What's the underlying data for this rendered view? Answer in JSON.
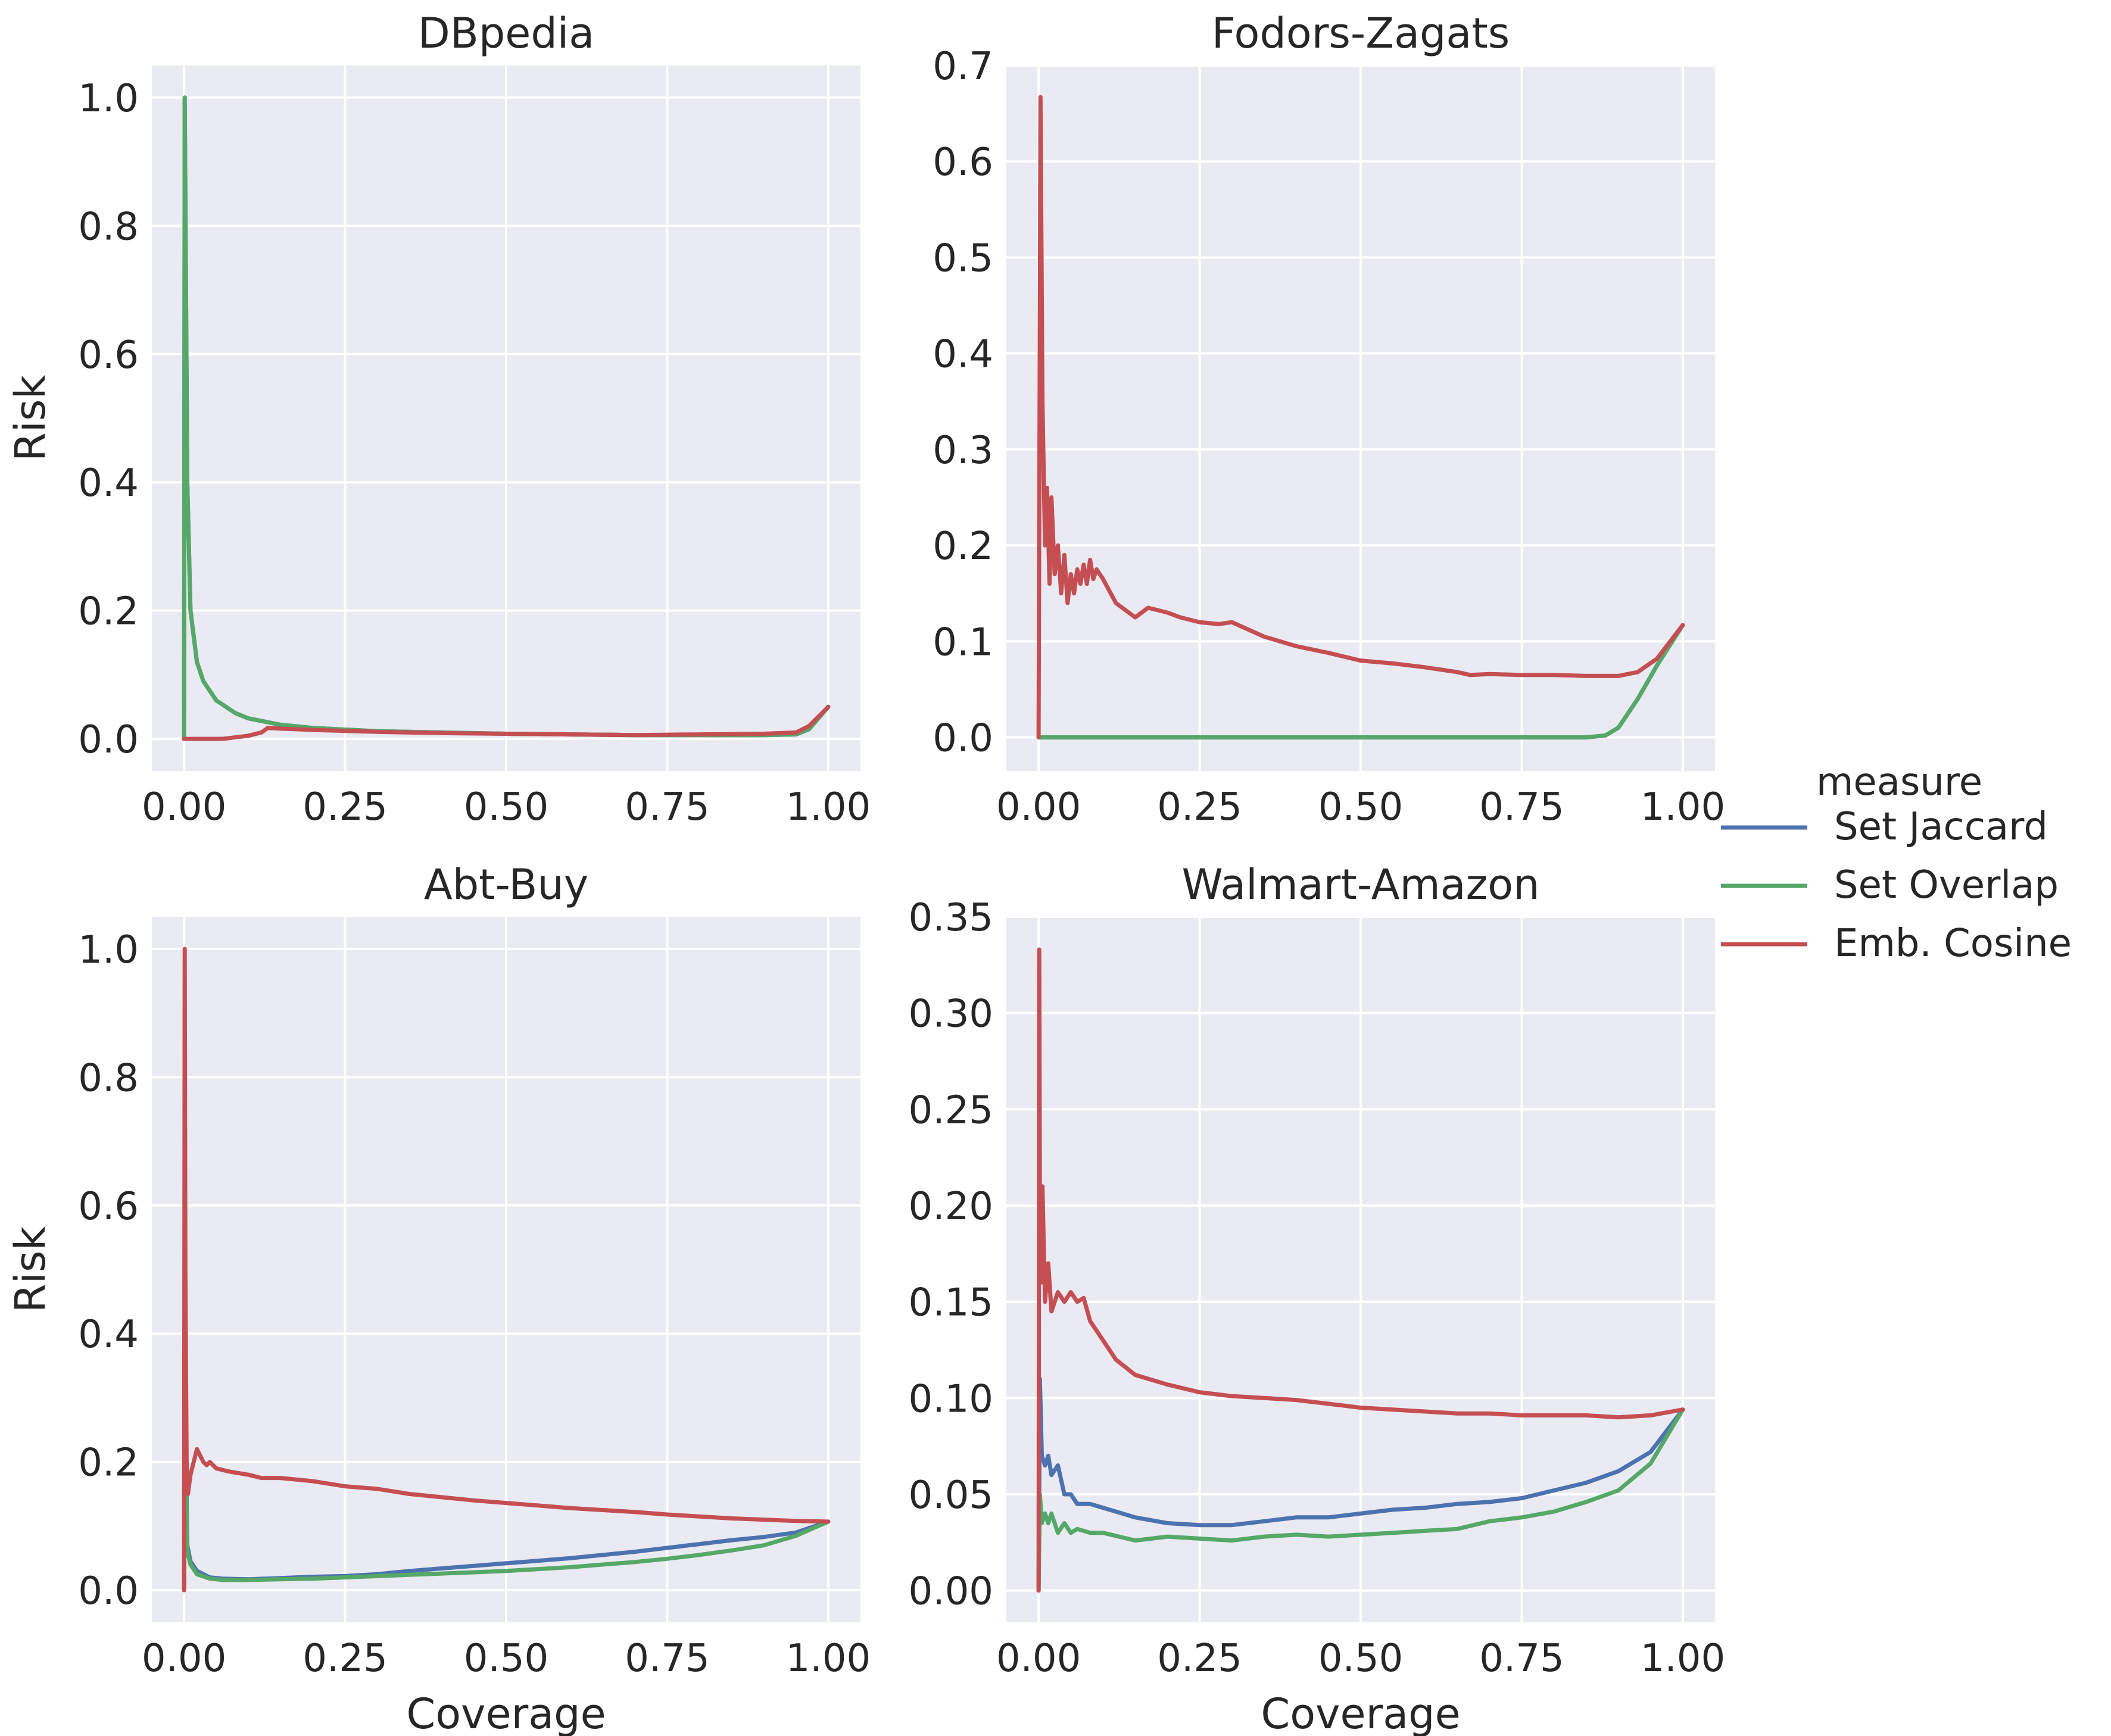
{
  "legend": {
    "title": "measure",
    "placement": "right",
    "entries": [
      {
        "name": "Set Jaccard",
        "color": "#4c72b0"
      },
      {
        "name": "Set Overlap",
        "color": "#55a868"
      },
      {
        "name": "Emb. Cosine",
        "color": "#c44e52"
      }
    ]
  },
  "style": {
    "panel_bg": "#eaeaf2",
    "grid": "#ffffff",
    "text": "#262626"
  },
  "chart_data": [
    {
      "type": "line",
      "title": "DBpedia",
      "xlabel": "",
      "ylabel": "Risk",
      "xlim": [
        -0.05,
        1.05
      ],
      "ylim": [
        -0.05,
        1.05
      ],
      "xticks": [
        0,
        0.25,
        0.5,
        0.75,
        1.0
      ],
      "xtick_labels": [
        "0.00",
        "0.25",
        "0.50",
        "0.75",
        "1.00"
      ],
      "yticks": [
        0,
        0.2,
        0.4,
        0.6,
        0.8,
        1.0
      ],
      "ytick_labels": [
        "0.0",
        "0.2",
        "0.4",
        "0.6",
        "0.8",
        "1.0"
      ],
      "grid": true,
      "series": [
        {
          "name": "Set Jaccard",
          "color": "#4c72b0",
          "x": [
            0,
            0.001,
            0.005,
            0.01,
            0.02,
            0.03,
            0.05,
            0.08,
            0.1,
            0.15,
            0.2,
            0.3,
            0.4,
            0.5,
            0.6,
            0.7,
            0.8,
            0.9,
            0.95,
            0.97,
            1.0
          ],
          "y": [
            0,
            1.0,
            0.4,
            0.2,
            0.12,
            0.09,
            0.06,
            0.04,
            0.032,
            0.022,
            0.017,
            0.012,
            0.01,
            0.008,
            0.007,
            0.006,
            0.006,
            0.006,
            0.007,
            0.015,
            0.05
          ]
        },
        {
          "name": "Set Overlap",
          "color": "#55a868",
          "x": [
            0,
            0.001,
            0.005,
            0.01,
            0.02,
            0.03,
            0.05,
            0.08,
            0.1,
            0.15,
            0.2,
            0.3,
            0.4,
            0.5,
            0.6,
            0.7,
            0.8,
            0.9,
            0.95,
            0.97,
            1.0
          ],
          "y": [
            0,
            1.0,
            0.4,
            0.2,
            0.12,
            0.09,
            0.06,
            0.04,
            0.032,
            0.022,
            0.017,
            0.012,
            0.01,
            0.008,
            0.007,
            0.006,
            0.006,
            0.006,
            0.007,
            0.015,
            0.05
          ]
        },
        {
          "name": "Emb. Cosine",
          "color": "#c44e52",
          "x": [
            0,
            0.03,
            0.06,
            0.1,
            0.12,
            0.13,
            0.15,
            0.2,
            0.3,
            0.4,
            0.5,
            0.6,
            0.7,
            0.8,
            0.9,
            0.95,
            0.97,
            1.0
          ],
          "y": [
            0,
            0,
            0,
            0.005,
            0.01,
            0.017,
            0.016,
            0.014,
            0.011,
            0.009,
            0.008,
            0.007,
            0.006,
            0.007,
            0.008,
            0.01,
            0.02,
            0.05
          ]
        }
      ]
    },
    {
      "type": "line",
      "title": "Fodors-Zagats",
      "xlabel": "",
      "ylabel": "",
      "xlim": [
        -0.05,
        1.05
      ],
      "ylim": [
        -0.035,
        0.7
      ],
      "xticks": [
        0,
        0.25,
        0.5,
        0.75,
        1.0
      ],
      "xtick_labels": [
        "0.00",
        "0.25",
        "0.50",
        "0.75",
        "1.00"
      ],
      "yticks": [
        0,
        0.1,
        0.2,
        0.3,
        0.4,
        0.5,
        0.6,
        0.7
      ],
      "ytick_labels": [
        "0.0",
        "0.1",
        "0.2",
        "0.3",
        "0.4",
        "0.5",
        "0.6",
        "0.7"
      ],
      "grid": true,
      "series": [
        {
          "name": "Set Jaccard",
          "color": "#4c72b0",
          "x": [
            0,
            0.85,
            0.88,
            0.9,
            0.93,
            0.96,
            1.0
          ],
          "y": [
            0,
            0,
            0.002,
            0.01,
            0.04,
            0.075,
            0.117
          ]
        },
        {
          "name": "Set Overlap",
          "color": "#55a868",
          "x": [
            0,
            0.85,
            0.88,
            0.9,
            0.93,
            0.96,
            1.0
          ],
          "y": [
            0,
            0,
            0.002,
            0.01,
            0.04,
            0.075,
            0.117
          ]
        },
        {
          "name": "Emb. Cosine",
          "color": "#c44e52",
          "x": [
            0,
            0.003,
            0.006,
            0.01,
            0.013,
            0.017,
            0.02,
            0.025,
            0.03,
            0.035,
            0.04,
            0.045,
            0.05,
            0.055,
            0.06,
            0.065,
            0.07,
            0.075,
            0.08,
            0.085,
            0.09,
            0.1,
            0.12,
            0.15,
            0.17,
            0.2,
            0.22,
            0.25,
            0.28,
            0.3,
            0.35,
            0.4,
            0.45,
            0.5,
            0.55,
            0.6,
            0.65,
            0.67,
            0.7,
            0.75,
            0.8,
            0.85,
            0.9,
            0.93,
            0.96,
            1.0
          ],
          "y": [
            0,
            0.667,
            0.35,
            0.2,
            0.26,
            0.16,
            0.25,
            0.17,
            0.2,
            0.15,
            0.19,
            0.14,
            0.17,
            0.15,
            0.175,
            0.16,
            0.18,
            0.16,
            0.185,
            0.165,
            0.175,
            0.165,
            0.14,
            0.125,
            0.135,
            0.13,
            0.125,
            0.12,
            0.118,
            0.12,
            0.105,
            0.095,
            0.088,
            0.08,
            0.077,
            0.073,
            0.068,
            0.065,
            0.066,
            0.065,
            0.065,
            0.064,
            0.064,
            0.068,
            0.082,
            0.117
          ]
        }
      ]
    },
    {
      "type": "line",
      "title": "Abt-Buy",
      "xlabel": "Coverage",
      "ylabel": "Risk",
      "xlim": [
        -0.05,
        1.05
      ],
      "ylim": [
        -0.05,
        1.05
      ],
      "xticks": [
        0,
        0.25,
        0.5,
        0.75,
        1.0
      ],
      "xtick_labels": [
        "0.00",
        "0.25",
        "0.50",
        "0.75",
        "1.00"
      ],
      "yticks": [
        0,
        0.2,
        0.4,
        0.6,
        0.8,
        1.0
      ],
      "ytick_labels": [
        "0.0",
        "0.2",
        "0.4",
        "0.6",
        "0.8",
        "1.0"
      ],
      "grid": true,
      "series": [
        {
          "name": "Set Jaccard",
          "color": "#4c72b0",
          "x": [
            0,
            0.002,
            0.005,
            0.01,
            0.02,
            0.04,
            0.06,
            0.1,
            0.15,
            0.2,
            0.25,
            0.3,
            0.35,
            0.4,
            0.45,
            0.5,
            0.55,
            0.6,
            0.65,
            0.7,
            0.75,
            0.8,
            0.85,
            0.9,
            0.95,
            1.0
          ],
          "y": [
            0,
            0.3,
            0.07,
            0.045,
            0.03,
            0.02,
            0.018,
            0.017,
            0.019,
            0.021,
            0.022,
            0.025,
            0.03,
            0.034,
            0.038,
            0.042,
            0.046,
            0.05,
            0.055,
            0.06,
            0.066,
            0.072,
            0.078,
            0.083,
            0.09,
            0.107
          ]
        },
        {
          "name": "Set Overlap",
          "color": "#55a868",
          "x": [
            0,
            0.002,
            0.005,
            0.01,
            0.02,
            0.04,
            0.06,
            0.1,
            0.15,
            0.2,
            0.25,
            0.3,
            0.35,
            0.4,
            0.45,
            0.5,
            0.55,
            0.6,
            0.65,
            0.7,
            0.75,
            0.8,
            0.85,
            0.9,
            0.95,
            1.0
          ],
          "y": [
            0,
            0.25,
            0.06,
            0.04,
            0.025,
            0.018,
            0.016,
            0.016,
            0.017,
            0.018,
            0.02,
            0.022,
            0.024,
            0.026,
            0.028,
            0.03,
            0.033,
            0.036,
            0.04,
            0.044,
            0.049,
            0.055,
            0.062,
            0.07,
            0.085,
            0.107
          ]
        },
        {
          "name": "Emb. Cosine",
          "color": "#c44e52",
          "x": [
            0,
            0.001,
            0.002,
            0.004,
            0.006,
            0.01,
            0.015,
            0.02,
            0.025,
            0.03,
            0.035,
            0.04,
            0.05,
            0.07,
            0.1,
            0.12,
            0.15,
            0.2,
            0.25,
            0.3,
            0.35,
            0.4,
            0.45,
            0.5,
            0.55,
            0.6,
            0.65,
            0.7,
            0.75,
            0.8,
            0.85,
            0.9,
            0.95,
            1.0
          ],
          "y": [
            0,
            1.0,
            0.5,
            0.2,
            0.15,
            0.18,
            0.2,
            0.22,
            0.21,
            0.2,
            0.195,
            0.2,
            0.19,
            0.185,
            0.18,
            0.175,
            0.175,
            0.17,
            0.162,
            0.158,
            0.15,
            0.145,
            0.14,
            0.136,
            0.132,
            0.128,
            0.125,
            0.122,
            0.118,
            0.115,
            0.112,
            0.11,
            0.108,
            0.107
          ]
        }
      ]
    },
    {
      "type": "line",
      "title": "Walmart-Amazon",
      "xlabel": "Coverage",
      "ylabel": "",
      "xlim": [
        -0.05,
        1.05
      ],
      "ylim": [
        -0.0165,
        0.35
      ],
      "xticks": [
        0,
        0.25,
        0.5,
        0.75,
        1.0
      ],
      "xtick_labels": [
        "0.00",
        "0.25",
        "0.50",
        "0.75",
        "1.00"
      ],
      "yticks": [
        0,
        0.05,
        0.1,
        0.15,
        0.2,
        0.25,
        0.3,
        0.35
      ],
      "ytick_labels": [
        "0.00",
        "0.05",
        "0.10",
        "0.15",
        "0.20",
        "0.25",
        "0.30",
        "0.35"
      ],
      "grid": true,
      "series": [
        {
          "name": "Set Jaccard",
          "color": "#4c72b0",
          "x": [
            0,
            0.002,
            0.005,
            0.01,
            0.015,
            0.02,
            0.03,
            0.04,
            0.05,
            0.06,
            0.08,
            0.1,
            0.15,
            0.2,
            0.25,
            0.3,
            0.35,
            0.4,
            0.45,
            0.5,
            0.55,
            0.6,
            0.65,
            0.7,
            0.75,
            0.8,
            0.85,
            0.9,
            0.95,
            1.0
          ],
          "y": [
            0,
            0.11,
            0.07,
            0.065,
            0.07,
            0.06,
            0.065,
            0.05,
            0.05,
            0.045,
            0.045,
            0.043,
            0.038,
            0.035,
            0.034,
            0.034,
            0.036,
            0.038,
            0.038,
            0.04,
            0.042,
            0.043,
            0.045,
            0.046,
            0.048,
            0.052,
            0.056,
            0.062,
            0.072,
            0.094
          ]
        },
        {
          "name": "Set Overlap",
          "color": "#55a868",
          "x": [
            0,
            0.002,
            0.005,
            0.01,
            0.015,
            0.02,
            0.03,
            0.04,
            0.05,
            0.06,
            0.08,
            0.1,
            0.15,
            0.2,
            0.25,
            0.3,
            0.35,
            0.4,
            0.45,
            0.5,
            0.55,
            0.6,
            0.65,
            0.7,
            0.75,
            0.8,
            0.85,
            0.9,
            0.95,
            1.0
          ],
          "y": [
            0,
            0.05,
            0.035,
            0.04,
            0.035,
            0.04,
            0.03,
            0.035,
            0.03,
            0.032,
            0.03,
            0.03,
            0.026,
            0.028,
            0.027,
            0.026,
            0.028,
            0.029,
            0.028,
            0.029,
            0.03,
            0.031,
            0.032,
            0.036,
            0.038,
            0.041,
            0.046,
            0.052,
            0.066,
            0.094
          ]
        },
        {
          "name": "Emb. Cosine",
          "color": "#c44e52",
          "x": [
            0,
            0.001,
            0.002,
            0.004,
            0.006,
            0.008,
            0.01,
            0.015,
            0.02,
            0.03,
            0.04,
            0.05,
            0.06,
            0.07,
            0.08,
            0.1,
            0.12,
            0.15,
            0.2,
            0.25,
            0.3,
            0.35,
            0.4,
            0.45,
            0.5,
            0.55,
            0.6,
            0.65,
            0.7,
            0.75,
            0.8,
            0.85,
            0.9,
            0.95,
            1.0
          ],
          "y": [
            0,
            0.333,
            0.2,
            0.16,
            0.21,
            0.18,
            0.15,
            0.17,
            0.145,
            0.155,
            0.15,
            0.155,
            0.15,
            0.152,
            0.14,
            0.13,
            0.12,
            0.112,
            0.107,
            0.103,
            0.101,
            0.1,
            0.099,
            0.097,
            0.095,
            0.094,
            0.093,
            0.092,
            0.092,
            0.091,
            0.091,
            0.091,
            0.09,
            0.091,
            0.094
          ]
        }
      ]
    }
  ]
}
